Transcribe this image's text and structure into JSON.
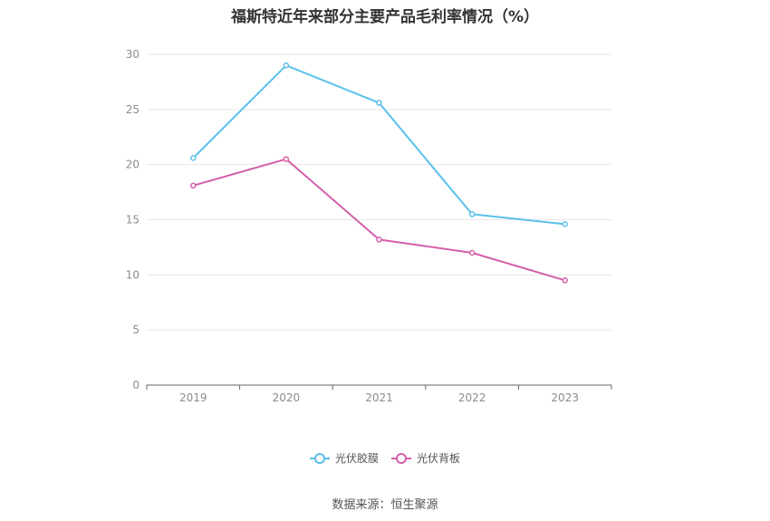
{
  "chart_data": {
    "type": "line",
    "title": "福斯特近年来部分主要产品毛利率情况（%）",
    "categories": [
      "2019",
      "2020",
      "2021",
      "2022",
      "2023"
    ],
    "ylim": [
      0,
      30
    ],
    "yticks": [
      0,
      5,
      10,
      15,
      20,
      25,
      30
    ],
    "grid": true,
    "legend_position": "bottom-center",
    "series": [
      {
        "name": "光伏胶膜",
        "color": "#5bc0eb",
        "values": [
          20.6,
          29.0,
          25.6,
          15.5,
          14.6
        ]
      },
      {
        "name": "光伏背板",
        "color": "#d45fa9",
        "values": [
          18.1,
          20.5,
          13.2,
          12.0,
          9.5
        ]
      }
    ]
  },
  "source": "数据来源：恒生聚源"
}
